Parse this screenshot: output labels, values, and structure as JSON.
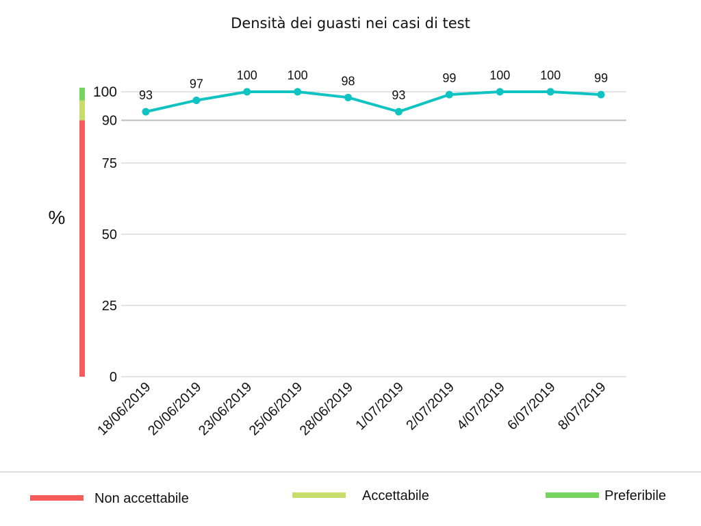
{
  "chart_data": {
    "type": "line",
    "title": "Densità dei guasti nei casi di test",
    "ylabel": "%",
    "ylim": [
      0,
      100
    ],
    "yticks": [
      0,
      25,
      50,
      75,
      90,
      100
    ],
    "grid": true,
    "categories": [
      "18/06/2019",
      "20/06/2019",
      "23/06/2019",
      "25/06/2019",
      "28/06/2019",
      "1/07/2019",
      "2/07/2019",
      "4/07/2019",
      "6/07/2019",
      "8/07/2019"
    ],
    "series": [
      {
        "values": [
          93,
          97,
          100,
          100,
          98,
          93,
          99,
          100,
          100,
          99
        ],
        "color": "#0fc3c3"
      }
    ],
    "bands": [
      {
        "name": "Non accettabile",
        "from": 0,
        "to": 90,
        "color": "#f75b5b"
      },
      {
        "name": "Accettabile",
        "from": 90,
        "to": 97,
        "color": "#c8dd6a"
      },
      {
        "name": "Preferibile",
        "from": 97,
        "to": 100,
        "color": "#75d45c"
      }
    ],
    "legend_position": "bottom"
  }
}
